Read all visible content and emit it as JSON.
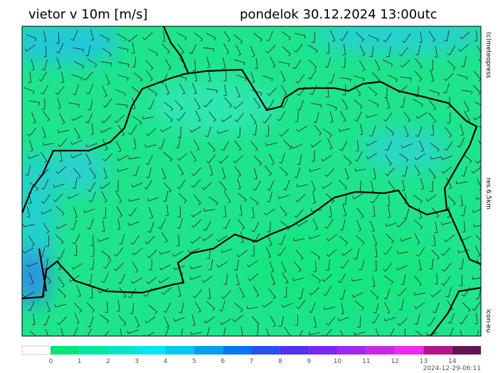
{
  "header": {
    "title": "vietor v 10m [m/s]",
    "datetime": "pondelok 30.12.2024 13:00utc"
  },
  "side_labels": {
    "copyright": "(c)meteopress",
    "resolution": "res.6.5km",
    "model": "icon-eu"
  },
  "colorbar": {
    "ticks": [
      0,
      1,
      2,
      3,
      4,
      5,
      6,
      7,
      8,
      9,
      10,
      11,
      12,
      13,
      14
    ],
    "colors": [
      "#ffffff",
      "#00e67a",
      "#00e6a0",
      "#00e6c8",
      "#00e6f0",
      "#00c8f0",
      "#00a0f0",
      "#0078f0",
      "#2850f0",
      "#5032f0",
      "#7828f0",
      "#a028f0",
      "#c828e6",
      "#f028f0",
      "#b4148c",
      "#641450"
    ]
  },
  "footer": {
    "timestamp": "2024-12-29-06:11"
  }
}
